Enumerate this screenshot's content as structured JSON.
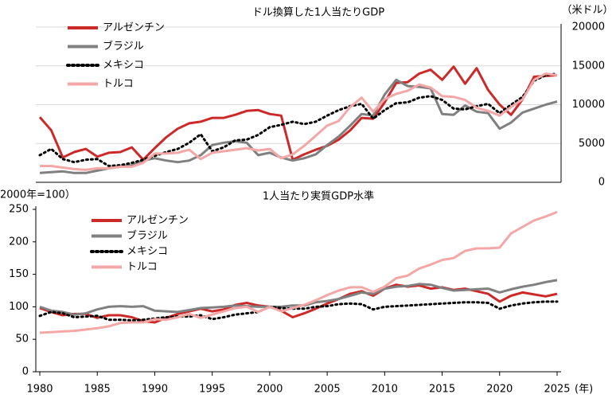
{
  "chart_data": [
    {
      "type": "line",
      "title": "ドル換算した1人当たりGDP",
      "y_label": "（米ドル）",
      "yaxis_side": "right",
      "grid": true,
      "legend": "upper left",
      "x": [
        1980,
        1981,
        1982,
        1983,
        1984,
        1985,
        1986,
        1987,
        1988,
        1989,
        1990,
        1991,
        1992,
        1993,
        1994,
        1995,
        1996,
        1997,
        1998,
        1999,
        2000,
        2001,
        2002,
        2003,
        2004,
        2005,
        2006,
        2007,
        2008,
        2009,
        2010,
        2011,
        2012,
        2013,
        2014,
        2015,
        2016,
        2017,
        2018,
        2019,
        2020,
        2021,
        2022,
        2023,
        2024,
        2025
      ],
      "xlim": [
        1980,
        2025
      ],
      "ylim": [
        0,
        20000
      ],
      "yticks": [
        0,
        5000,
        10000,
        15000,
        20000
      ],
      "series": [
        {
          "name": "アルゼンチン",
          "color": "#cc2929",
          "style": "solid",
          "values": [
            8400,
            6700,
            3200,
            3900,
            4300,
            3300,
            3800,
            3900,
            4500,
            2900,
            4400,
            5800,
            6900,
            7600,
            7800,
            8300,
            8300,
            8700,
            9200,
            9300,
            8800,
            8600,
            2900,
            3600,
            4200,
            4700,
            5500,
            6700,
            8300,
            8200,
            10300,
            12800,
            12900,
            14000,
            14500,
            13200,
            14900,
            12700,
            14700,
            11900,
            10000,
            8700,
            10700,
            13600,
            13700,
            13800
          ]
        },
        {
          "name": "ブラジル",
          "color": "#808080",
          "style": "solid",
          "values": [
            1200,
            1300,
            1400,
            1200,
            1200,
            1500,
            1800,
            2000,
            2200,
            2800,
            3100,
            2800,
            2600,
            2800,
            3500,
            4800,
            5100,
            5300,
            5100,
            3500,
            3800,
            3200,
            2800,
            3100,
            3600,
            4800,
            5900,
            7300,
            8800,
            8600,
            11300,
            13200,
            12400,
            12300,
            12100,
            8800,
            8700,
            9900,
            9100,
            8900,
            6900,
            7700,
            9000,
            9500,
            10000,
            10400
          ]
        },
        {
          "name": "メキシコ",
          "color": "#000000",
          "style": "dotted",
          "values": [
            3500,
            4300,
            3000,
            2600,
            2900,
            3000,
            2100,
            2200,
            2500,
            2900,
            3400,
            3900,
            4300,
            5100,
            6200,
            4000,
            4500,
            5400,
            5500,
            6100,
            7100,
            7400,
            7800,
            7500,
            7800,
            8600,
            9300,
            9800,
            10100,
            8200,
            9300,
            10200,
            10300,
            10900,
            11100,
            10600,
            9500,
            9400,
            9800,
            10100,
            8900,
            10000,
            11000,
            13100,
            13800,
            14000
          ]
        },
        {
          "name": "トルコ",
          "color": "#f4a7a7",
          "style": "solid",
          "values": [
            2100,
            2100,
            1900,
            1700,
            1600,
            1800,
            1800,
            2000,
            2000,
            2500,
            3700,
            3700,
            3800,
            4200,
            3000,
            3800,
            4000,
            4200,
            4400,
            4100,
            4300,
            3100,
            3600,
            4700,
            6000,
            7300,
            7900,
            9700,
            10900,
            9100,
            10700,
            11400,
            11800,
            12600,
            12200,
            11100,
            11000,
            10600,
            9600,
            9200,
            8600,
            9700,
            10700,
            13200,
            14000,
            13800
          ]
        }
      ]
    },
    {
      "type": "line",
      "title": "1人当たり実質GDP水準",
      "y_label": "2000年=100）",
      "x_label": "(年)",
      "yaxis_side": "left",
      "grid": false,
      "legend": "upper left",
      "x": [
        1980,
        1981,
        1982,
        1983,
        1984,
        1985,
        1986,
        1987,
        1988,
        1989,
        1990,
        1991,
        1992,
        1993,
        1994,
        1995,
        1996,
        1997,
        1998,
        1999,
        2000,
        2001,
        2002,
        2003,
        2004,
        2005,
        2006,
        2007,
        2008,
        2009,
        2010,
        2011,
        2012,
        2013,
        2014,
        2015,
        2016,
        2017,
        2018,
        2019,
        2020,
        2021,
        2022,
        2023,
        2024,
        2025
      ],
      "xlim": [
        1980,
        2025
      ],
      "xticks": [
        1980,
        1985,
        1990,
        1995,
        2000,
        2005,
        2010,
        2015,
        2020,
        2025
      ],
      "ylim": [
        0,
        250
      ],
      "yticks": [
        0,
        50,
        100,
        150,
        200,
        250
      ],
      "series": [
        {
          "name": "アルゼンチン",
          "color": "#cc2929",
          "style": "solid",
          "values": [
            98,
            92,
            87,
            89,
            89,
            83,
            87,
            87,
            84,
            78,
            76,
            83,
            89,
            93,
            97,
            93,
            96,
            103,
            106,
            102,
            100,
            94,
            84,
            90,
            97,
            105,
            112,
            120,
            124,
            117,
            128,
            134,
            131,
            133,
            128,
            130,
            126,
            128,
            124,
            120,
            108,
            117,
            122,
            119,
            116,
            120
          ]
        },
        {
          "name": "ブラジル",
          "color": "#808080",
          "style": "solid",
          "values": [
            100,
            94,
            92,
            88,
            90,
            96,
            100,
            101,
            100,
            101,
            94,
            93,
            92,
            95,
            98,
            99,
            100,
            102,
            101,
            100,
            100,
            100,
            102,
            102,
            107,
            109,
            112,
            117,
            122,
            120,
            128,
            131,
            132,
            135,
            134,
            129,
            125,
            126,
            127,
            128,
            122,
            127,
            131,
            134,
            138,
            141
          ]
        },
        {
          "name": "メキシコ",
          "color": "#000000",
          "style": "dotted",
          "values": [
            86,
            92,
            90,
            84,
            85,
            86,
            80,
            80,
            79,
            80,
            82,
            84,
            85,
            85,
            87,
            81,
            84,
            88,
            90,
            92,
            100,
            98,
            97,
            97,
            100,
            101,
            104,
            105,
            104,
            96,
            100,
            101,
            102,
            103,
            104,
            105,
            106,
            107,
            107,
            106,
            97,
            102,
            105,
            107,
            108,
            108
          ]
        },
        {
          "name": "トルコ",
          "color": "#f4a7a7",
          "style": "solid",
          "values": [
            60,
            61,
            62,
            63,
            65,
            67,
            70,
            75,
            76,
            76,
            81,
            80,
            84,
            89,
            83,
            88,
            93,
            98,
            100,
            92,
            100,
            93,
            98,
            103,
            110,
            118,
            125,
            130,
            130,
            123,
            131,
            144,
            148,
            159,
            165,
            172,
            175,
            186,
            190,
            190,
            191,
            213,
            223,
            233,
            239,
            246
          ]
        }
      ]
    }
  ]
}
